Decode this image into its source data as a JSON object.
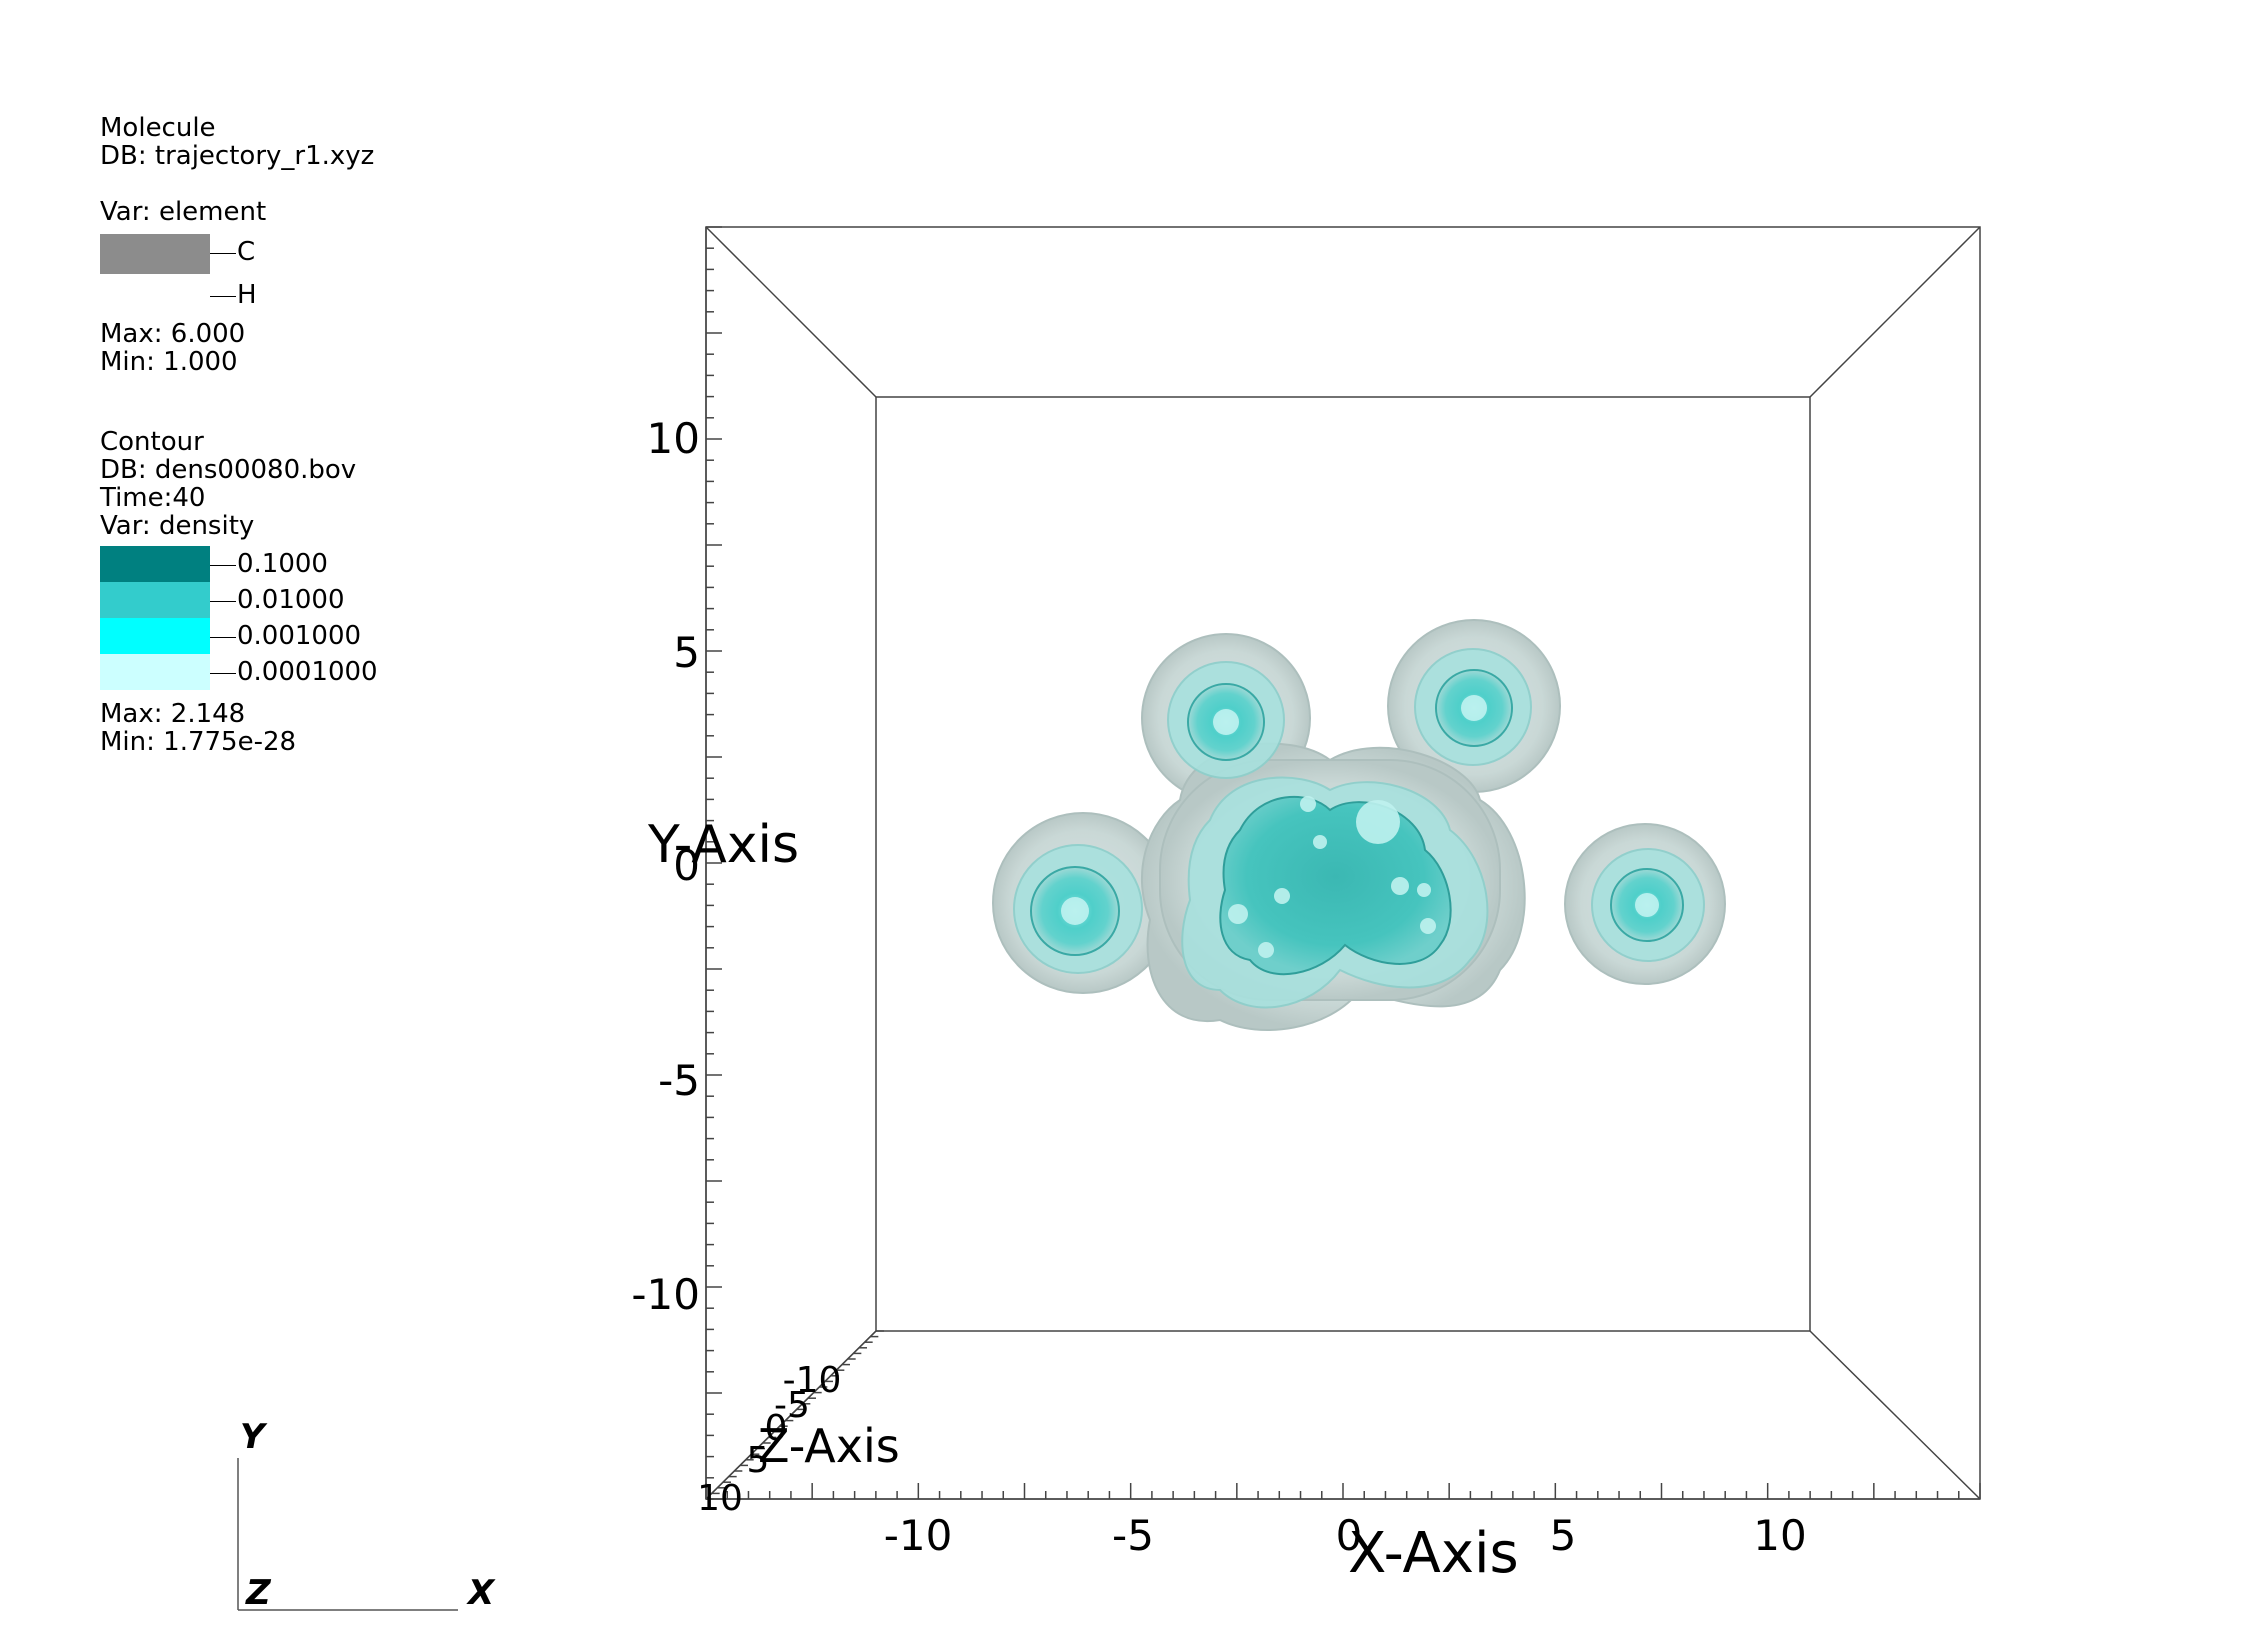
{
  "molecule_legend": {
    "title": "Molecule",
    "db": "DB: trajectory_r1.xyz",
    "var": "Var: element",
    "entries": [
      {
        "label": "C",
        "color": "#8c8c8c"
      },
      {
        "label": "H",
        "color": ""
      }
    ],
    "max": "Max:  6.000",
    "min": "Min:  1.000"
  },
  "contour_legend": {
    "title": "Contour",
    "db": "DB: dens00080.bov",
    "time": "Time:40",
    "var": "Var: density",
    "levels": [
      {
        "label": "0.1000",
        "color": "#008080"
      },
      {
        "label": "0.01000",
        "color": "#33cccc"
      },
      {
        "label": "0.001000",
        "color": "#00ffff"
      },
      {
        "label": "0.0001000",
        "color": "#ccffff"
      }
    ],
    "max": "Max:  2.148",
    "min": "Min:  1.775e-28"
  },
  "axes": {
    "x_title": "X-Axis",
    "y_title": "Y-Axis",
    "z_title": "Z-Axis",
    "x_ticks": [
      "-10",
      "-5",
      "0",
      "5",
      "10"
    ],
    "y_ticks": [
      "10",
      "5",
      "0",
      "-5",
      "-10"
    ],
    "z_ticks": [
      "-10",
      "-5",
      "0",
      "5",
      "10"
    ]
  },
  "triad": {
    "x": "X",
    "y": "Y",
    "z": "Z"
  }
}
